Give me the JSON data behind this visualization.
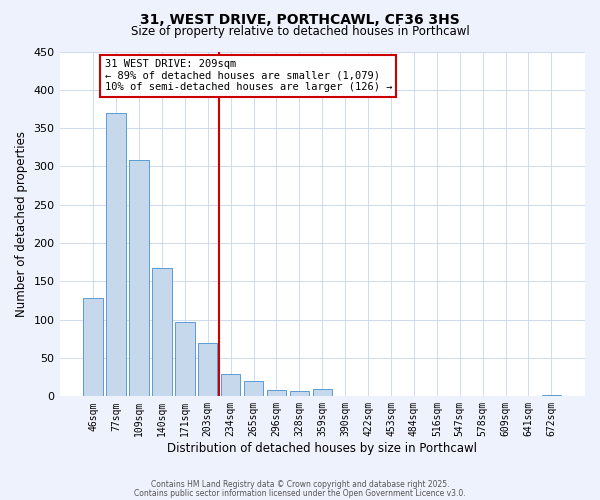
{
  "title": "31, WEST DRIVE, PORTHCAWL, CF36 3HS",
  "subtitle": "Size of property relative to detached houses in Porthcawl",
  "xlabel": "Distribution of detached houses by size in Porthcawl",
  "ylabel": "Number of detached properties",
  "bar_labels": [
    "46sqm",
    "77sqm",
    "109sqm",
    "140sqm",
    "171sqm",
    "203sqm",
    "234sqm",
    "265sqm",
    "296sqm",
    "328sqm",
    "359sqm",
    "390sqm",
    "422sqm",
    "453sqm",
    "484sqm",
    "516sqm",
    "547sqm",
    "578sqm",
    "609sqm",
    "641sqm",
    "672sqm"
  ],
  "bar_values": [
    128,
    370,
    309,
    168,
    97,
    70,
    29,
    20,
    8,
    7,
    9,
    0,
    0,
    0,
    0,
    0,
    0,
    0,
    0,
    0,
    2
  ],
  "ylim": [
    0,
    450
  ],
  "yticks": [
    0,
    50,
    100,
    150,
    200,
    250,
    300,
    350,
    400,
    450
  ],
  "bar_color": "#c6d9ec",
  "bar_edge_color": "#5b9bd5",
  "vline_x": 5.5,
  "vline_color": "#cc0000",
  "annotation_title": "31 WEST DRIVE: 209sqm",
  "annotation_line1": "← 89% of detached houses are smaller (1,079)",
  "annotation_line2": "10% of semi-detached houses are larger (126) →",
  "ann_box_color": "#cc0000",
  "footer1": "Contains HM Land Registry data © Crown copyright and database right 2025.",
  "footer2": "Contains public sector information licensed under the Open Government Licence v3.0.",
  "bg_color": "#eef2fc",
  "plot_bg_color": "#ffffff",
  "grid_color": "#c8d4ec"
}
